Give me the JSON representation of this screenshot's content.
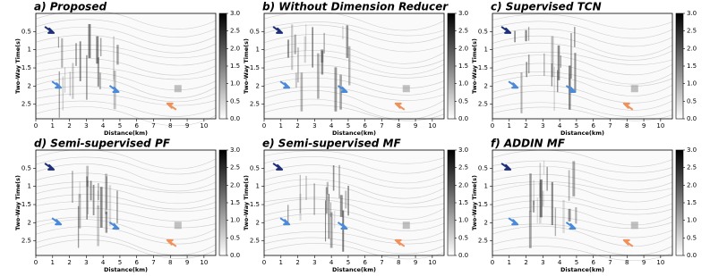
{
  "chart_data": [
    {
      "type": "heatmap",
      "title": "a) Proposed",
      "xlabel": "Distance(km)",
      "ylabel": "Two-Way Time(s)",
      "xlim": [
        0,
        10.7
      ],
      "xticks": [
        0,
        1,
        2,
        3,
        4,
        5,
        6,
        7,
        8,
        9,
        10
      ],
      "ylim": [
        0,
        2.9
      ],
      "yticks": [
        0.5,
        1.0,
        1.5,
        2.0,
        2.5
      ],
      "clim": [
        0,
        3
      ],
      "cticks": [
        {
          "value": 0,
          "label": "0.0"
        },
        0.5,
        {
          "value": 1,
          "label": "1.0"
        },
        1.5,
        {
          "value": 2,
          "label": "2.0"
        },
        2.5,
        {
          "value": 3,
          "label": "3.0"
        }
      ],
      "colormap": [
        "#ffffff",
        "#000000"
      ]
    },
    {
      "type": "heatmap",
      "title": "b) Without Dimension Reducer",
      "xlabel": "Distance(km)",
      "ylabel": "Two-Way Time(s)",
      "xlim": [
        0,
        10.7
      ],
      "xticks": [
        0,
        1,
        2,
        3,
        4,
        5,
        6,
        7,
        8,
        9,
        10
      ],
      "ylim": [
        0,
        2.9
      ],
      "yticks": [
        0.5,
        1.0,
        1.5,
        2.0,
        2.5
      ],
      "clim": [
        0,
        3
      ],
      "cticks": [
        {
          "value": 0,
          "label": "0.0"
        },
        0.5,
        {
          "value": 1,
          "label": "1.0"
        },
        1.5,
        {
          "value": 2,
          "label": "2.0"
        },
        2.5,
        {
          "value": 3,
          "label": "3.0"
        }
      ],
      "colormap": [
        "#ffffff",
        "#000000"
      ]
    },
    {
      "type": "heatmap",
      "title": "c) Supervised TCN",
      "xlabel": "Distance(km)",
      "ylabel": "Two-Way Time(s)",
      "xlim": [
        0,
        10.7
      ],
      "xticks": [
        0,
        1,
        2,
        3,
        4,
        5,
        6,
        7,
        8,
        9,
        10
      ],
      "ylim": [
        0,
        2.9
      ],
      "yticks": [
        0.5,
        1.0,
        1.5,
        2.0,
        2.5
      ],
      "clim": [
        0,
        3
      ],
      "cticks": [
        {
          "value": 0,
          "label": "0.0"
        },
        0.5,
        {
          "value": 1,
          "label": "1.0"
        },
        1.5,
        {
          "value": 2,
          "label": "2.0"
        },
        2.5,
        {
          "value": 3,
          "label": "3.0"
        }
      ],
      "colormap": [
        "#ffffff",
        "#000000"
      ]
    },
    {
      "type": "heatmap",
      "title": "d) Semi-supervised PF",
      "xlabel": "Distance(km)",
      "ylabel": "Two-Way Time(s)",
      "xlim": [
        0,
        10.7
      ],
      "xticks": [
        0,
        1,
        2,
        3,
        4,
        5,
        6,
        7,
        8,
        9,
        10
      ],
      "ylim": [
        0,
        2.9
      ],
      "yticks": [
        0.5,
        1.0,
        1.5,
        2.0,
        2.5
      ],
      "clim": [
        0,
        3
      ],
      "cticks": [
        {
          "value": 0,
          "label": "0.0"
        },
        0.5,
        {
          "value": 1,
          "label": "1.0"
        },
        1.5,
        {
          "value": 2,
          "label": "2.0"
        },
        2.5,
        {
          "value": 3,
          "label": "3.0"
        }
      ],
      "colormap": [
        "#ffffff",
        "#000000"
      ]
    },
    {
      "type": "heatmap",
      "title": "e) Semi-supervised MF",
      "xlabel": "Distance(km)",
      "ylabel": "Two-Way Time(s)",
      "xlim": [
        0,
        10.7
      ],
      "xticks": [
        0,
        1,
        2,
        3,
        4,
        5,
        6,
        7,
        8,
        9,
        10
      ],
      "ylim": [
        0,
        2.9
      ],
      "yticks": [
        0.5,
        1.0,
        1.5,
        2.0,
        2.5
      ],
      "clim": [
        0,
        3
      ],
      "cticks": [
        {
          "value": 0,
          "label": "0.0"
        },
        0.5,
        {
          "value": 1,
          "label": "1.0"
        },
        1.5,
        {
          "value": 2,
          "label": "2.0"
        },
        2.5,
        {
          "value": 3,
          "label": "3.0"
        }
      ],
      "colormap": [
        "#ffffff",
        "#000000"
      ]
    },
    {
      "type": "heatmap",
      "title": "f) ADDIN MF",
      "xlabel": "Distance(km)",
      "ylabel": "Two-Way Time(s)",
      "xlim": [
        0,
        10.7
      ],
      "xticks": [
        0,
        1,
        2,
        3,
        4,
        5,
        6,
        7,
        8,
        9,
        10
      ],
      "ylim": [
        0,
        2.9
      ],
      "yticks": [
        0.5,
        1.0,
        1.5,
        2.0,
        2.5
      ],
      "clim": [
        0,
        3
      ],
      "cticks": [
        {
          "value": 0,
          "label": "0.0"
        },
        0.5,
        {
          "value": 1,
          "label": "1.0"
        },
        1.5,
        {
          "value": 2,
          "label": "2.0"
        },
        2.5,
        {
          "value": 3,
          "label": "3.0"
        }
      ],
      "colormap": [
        "#ffffff",
        "#000000"
      ]
    }
  ]
}
